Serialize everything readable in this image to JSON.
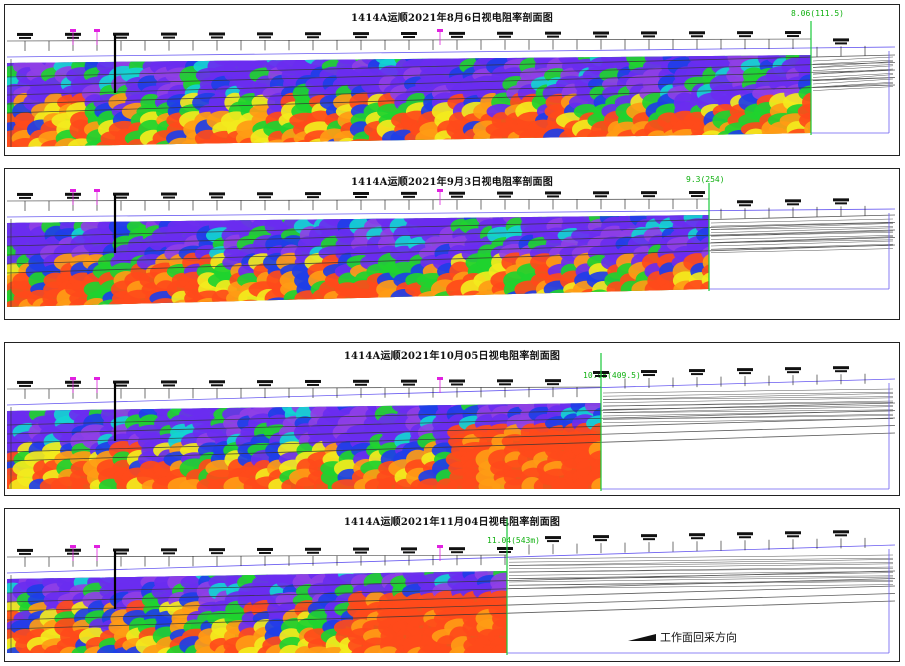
{
  "panels": [
    {
      "title": "1414A运顺2021年8月6日视电阻率剖面图",
      "marker": "8.06(111.5)"
    },
    {
      "title": "1414A运顺2021年9月3日视电阻率剖面图",
      "marker": "9.3(254)"
    },
    {
      "title": "1414A运顺2021年10月05日视电阻率剖面图",
      "marker": "10.05(409.5)"
    },
    {
      "title": "1414A运顺2021年11月04日视电阻率剖面图",
      "marker": "11.04(543m)"
    }
  ],
  "direction_label": "工作面回采方向",
  "colors": {
    "purple": "#6a2cf0",
    "violet": "#8f3fe6",
    "blue": "#1e3ee8",
    "cyan": "#14d3d3",
    "green": "#1fd22f",
    "yellow": "#f3ea1d",
    "orange": "#ff9b15",
    "red": "#ff4a1a",
    "marker_line": "#19c93a",
    "frame": "#6a5cf0"
  }
}
